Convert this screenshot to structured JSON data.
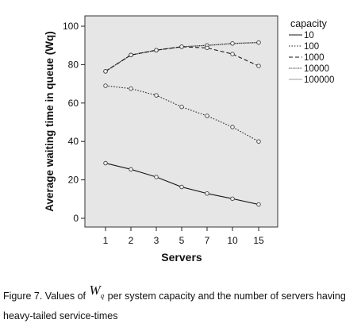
{
  "chart_data": {
    "type": "line",
    "xlabel": "Servers",
    "ylabel": "Average waiting time in queue (Wq)",
    "categories": [
      "1",
      "2",
      "3",
      "5",
      "7",
      "10",
      "15"
    ],
    "y_ticks": [
      "0",
      "20",
      "40",
      "60",
      "80",
      "100"
    ],
    "ylim": [
      -3,
      104
    ],
    "grid": false,
    "legend_title": "capacity",
    "legend_position": "right, outside plot area",
    "series": [
      {
        "name": "10",
        "values": [
          28.7,
          25.5,
          21.5,
          16.3,
          12.9,
          10.2,
          7.2
        ],
        "color": "#1a1a1a",
        "dash": "solid"
      },
      {
        "name": "100",
        "values": [
          69.0,
          67.5,
          64.0,
          58.0,
          53.3,
          47.5,
          40.0
        ],
        "color": "#2a2a2a",
        "dash": "dotted"
      },
      {
        "name": "1000",
        "values": [
          76.5,
          85.0,
          87.5,
          89.3,
          88.7,
          85.5,
          79.3
        ],
        "color": "#1a1a1a",
        "dash": "dashed"
      },
      {
        "name": "10000",
        "values": [
          76.5,
          85.0,
          87.5,
          89.3,
          90.0,
          91.0,
          91.5
        ],
        "color": "#1a1a1a",
        "dash": "densely-dotted"
      },
      {
        "name": "100000",
        "values": [
          76.5,
          85.0,
          87.5,
          89.3,
          90.0,
          91.0,
          91.5
        ],
        "color": "#bdbdbd",
        "dash": "solid"
      }
    ],
    "marker_colors": {
      "default": "#444444",
      "highlight": "#c8a85a"
    },
    "plot_background": "#e6e6e6"
  },
  "caption": {
    "prefix": "Figure 7. Values of",
    "symbol": "W",
    "symbol_sub": "q",
    "suffix": "per system capacity and the number of servers having heavy-tailed service-times"
  }
}
